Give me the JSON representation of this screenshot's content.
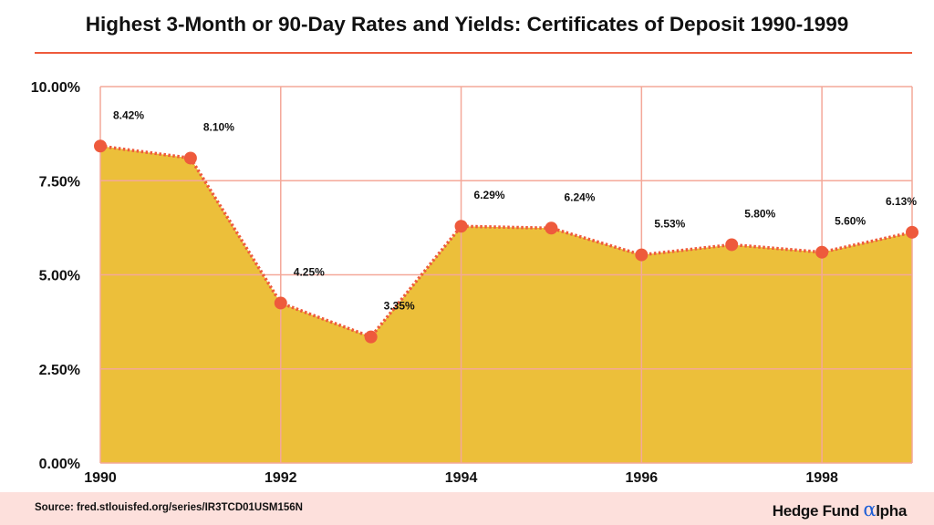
{
  "chart_data": {
    "type": "area",
    "title": "Highest 3-Month or 90-Day Rates and Yields: Certificates of Deposit 1990-1999",
    "x": [
      1990,
      1991,
      1992,
      1993,
      1994,
      1995,
      1996,
      1997,
      1998,
      1999
    ],
    "values": [
      8.42,
      8.1,
      4.25,
      3.35,
      6.29,
      6.24,
      5.53,
      5.8,
      5.6,
      6.13
    ],
    "data_labels": [
      "8.42%",
      "8.10%",
      "4.25%",
      "3.35%",
      "6.29%",
      "6.24%",
      "5.53%",
      "5.80%",
      "5.60%",
      "6.13%"
    ],
    "xticks": [
      "1990",
      "1992",
      "1994",
      "1996",
      "1998"
    ],
    "yticks": [
      "0.00%",
      "2.50%",
      "5.00%",
      "7.50%",
      "10.00%"
    ],
    "ylim": [
      0,
      10
    ],
    "xlim": [
      1990,
      1999
    ],
    "grid": true,
    "colors": {
      "fill": "#ecbf3a",
      "line": "#ee5a3c",
      "grid": "#f4a899",
      "title_rule": "#ee5a3c"
    }
  },
  "footer": {
    "source": "Source: fred.stlouisfed.org/series/IR3TCD01USM156N",
    "logo_prefix": "Hedge Fund ",
    "logo_alpha": "α",
    "logo_suffix": "lpha"
  }
}
